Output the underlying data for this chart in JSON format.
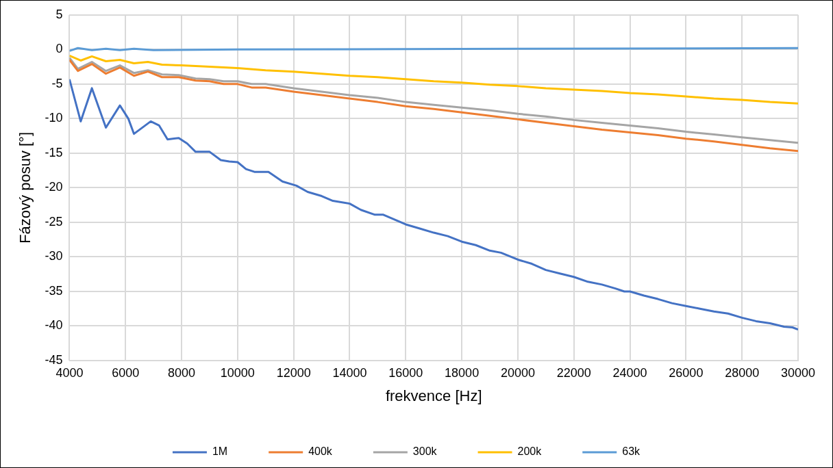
{
  "chart_data": {
    "type": "line",
    "xlabel": "frekvence [Hz]",
    "ylabel": "Fázový posuv [°]",
    "xlim": [
      4000,
      30000
    ],
    "xticks": [
      4000,
      6000,
      8000,
      10000,
      12000,
      14000,
      16000,
      18000,
      20000,
      22000,
      24000,
      26000,
      28000,
      30000
    ],
    "ylim": [
      -45,
      5
    ],
    "yticks": [
      -45,
      -40,
      -35,
      -30,
      -25,
      -20,
      -15,
      -10,
      -5,
      0,
      5
    ],
    "grid": true,
    "legend": "bottom",
    "marker": "none",
    "line_style": "solid",
    "series": [
      {
        "name": "1M",
        "color": "#4472c4",
        "x": [
          4000,
          4400,
          4800,
          5300,
          5800,
          6100,
          6300,
          6900,
          7200,
          7500,
          7900,
          8200,
          8500,
          9000,
          9400,
          9700,
          10000,
          10300,
          10600,
          11100,
          11600,
          12100,
          12500,
          13000,
          13400,
          14000,
          14400,
          14900,
          15200,
          15600,
          16000,
          16500,
          17000,
          17500,
          18000,
          18500,
          19000,
          19400,
          20000,
          20500,
          21000,
          21500,
          22000,
          22500,
          23000,
          23500,
          23800,
          24000,
          24500,
          25000,
          25500,
          26000,
          26500,
          27000,
          27500,
          28000,
          28500,
          29000,
          29500,
          29800,
          30000
        ],
        "values": [
          -4.3,
          -10.4,
          -5.6,
          -11.3,
          -8.1,
          -10,
          -12.2,
          -10.4,
          -11,
          -13,
          -12.8,
          -13.6,
          -14.8,
          -14.8,
          -16,
          -16.2,
          -16.3,
          -17.3,
          -17.7,
          -17.7,
          -19.1,
          -19.7,
          -20.6,
          -21.2,
          -21.9,
          -22.3,
          -23.2,
          -23.9,
          -23.9,
          -24.6,
          -25.3,
          -25.9,
          -26.5,
          -27,
          -27.8,
          -28.3,
          -29.1,
          -29.4,
          -30.4,
          -31,
          -31.9,
          -32.4,
          -32.9,
          -33.6,
          -34,
          -34.6,
          -35,
          -35,
          -35.6,
          -36.1,
          -36.7,
          -37.1,
          -37.5,
          -37.9,
          -38.2,
          -38.8,
          -39.3,
          -39.6,
          -40.1,
          -40.2,
          -40.5
        ]
      },
      {
        "name": "400k",
        "color": "#ed7d31",
        "x": [
          4000,
          4300,
          4800,
          5300,
          5800,
          6300,
          6800,
          7300,
          7900,
          8500,
          9000,
          9500,
          10000,
          10500,
          11000,
          12000,
          13000,
          14000,
          15000,
          16000,
          17000,
          18000,
          19000,
          20000,
          21000,
          22000,
          23000,
          24000,
          25000,
          26000,
          27000,
          28000,
          29000,
          30000
        ],
        "values": [
          -1.5,
          -3.1,
          -2.1,
          -3.5,
          -2.6,
          -3.8,
          -3.2,
          -4,
          -4,
          -4.5,
          -4.6,
          -5,
          -5,
          -5.5,
          -5.5,
          -6.1,
          -6.6,
          -7.1,
          -7.6,
          -8.2,
          -8.6,
          -9.1,
          -9.6,
          -10.1,
          -10.6,
          -11.1,
          -11.6,
          -12,
          -12.4,
          -12.9,
          -13.3,
          -13.8,
          -14.3,
          -14.7
        ]
      },
      {
        "name": "300k",
        "color": "#a5a5a5",
        "x": [
          4000,
          4300,
          4800,
          5300,
          5800,
          6300,
          6800,
          7300,
          7900,
          8500,
          9000,
          9500,
          10000,
          10500,
          11000,
          12000,
          13000,
          14000,
          15000,
          16000,
          17000,
          18000,
          19000,
          20000,
          21000,
          22000,
          23000,
          24000,
          25000,
          26000,
          27000,
          28000,
          29000,
          30000
        ],
        "values": [
          -1.2,
          -2.8,
          -1.8,
          -3.1,
          -2.3,
          -3.4,
          -3,
          -3.6,
          -3.7,
          -4.2,
          -4.3,
          -4.6,
          -4.6,
          -5,
          -5,
          -5.6,
          -6.1,
          -6.6,
          -7,
          -7.6,
          -8,
          -8.4,
          -8.8,
          -9.3,
          -9.7,
          -10.2,
          -10.6,
          -11,
          -11.4,
          -11.9,
          -12.3,
          -12.7,
          -13.1,
          -13.5
        ]
      },
      {
        "name": "200k",
        "color": "#ffc000",
        "x": [
          4000,
          4400,
          4800,
          5300,
          5800,
          6300,
          6800,
          7300,
          8000,
          9000,
          10000,
          11000,
          12000,
          13000,
          14000,
          15000,
          16000,
          17000,
          18000,
          19000,
          20000,
          21000,
          22000,
          23000,
          24000,
          25000,
          26000,
          27000,
          28000,
          29000,
          30000
        ],
        "values": [
          -0.9,
          -1.6,
          -1,
          -1.7,
          -1.5,
          -2,
          -1.8,
          -2.2,
          -2.3,
          -2.5,
          -2.7,
          -3,
          -3.2,
          -3.5,
          -3.8,
          -4,
          -4.3,
          -4.6,
          -4.8,
          -5.1,
          -5.3,
          -5.6,
          -5.8,
          -6,
          -6.3,
          -6.5,
          -6.8,
          -7.1,
          -7.3,
          -7.6,
          -7.8
        ]
      },
      {
        "name": "63k",
        "color": "#5b9bd5",
        "x": [
          4000,
          4300,
          4800,
          5300,
          5800,
          6300,
          7000,
          10000,
          20000,
          30000
        ],
        "values": [
          -0.2,
          0.2,
          -0.1,
          0.1,
          -0.1,
          0.1,
          -0.1,
          0,
          0.1,
          0.2
        ]
      }
    ]
  }
}
